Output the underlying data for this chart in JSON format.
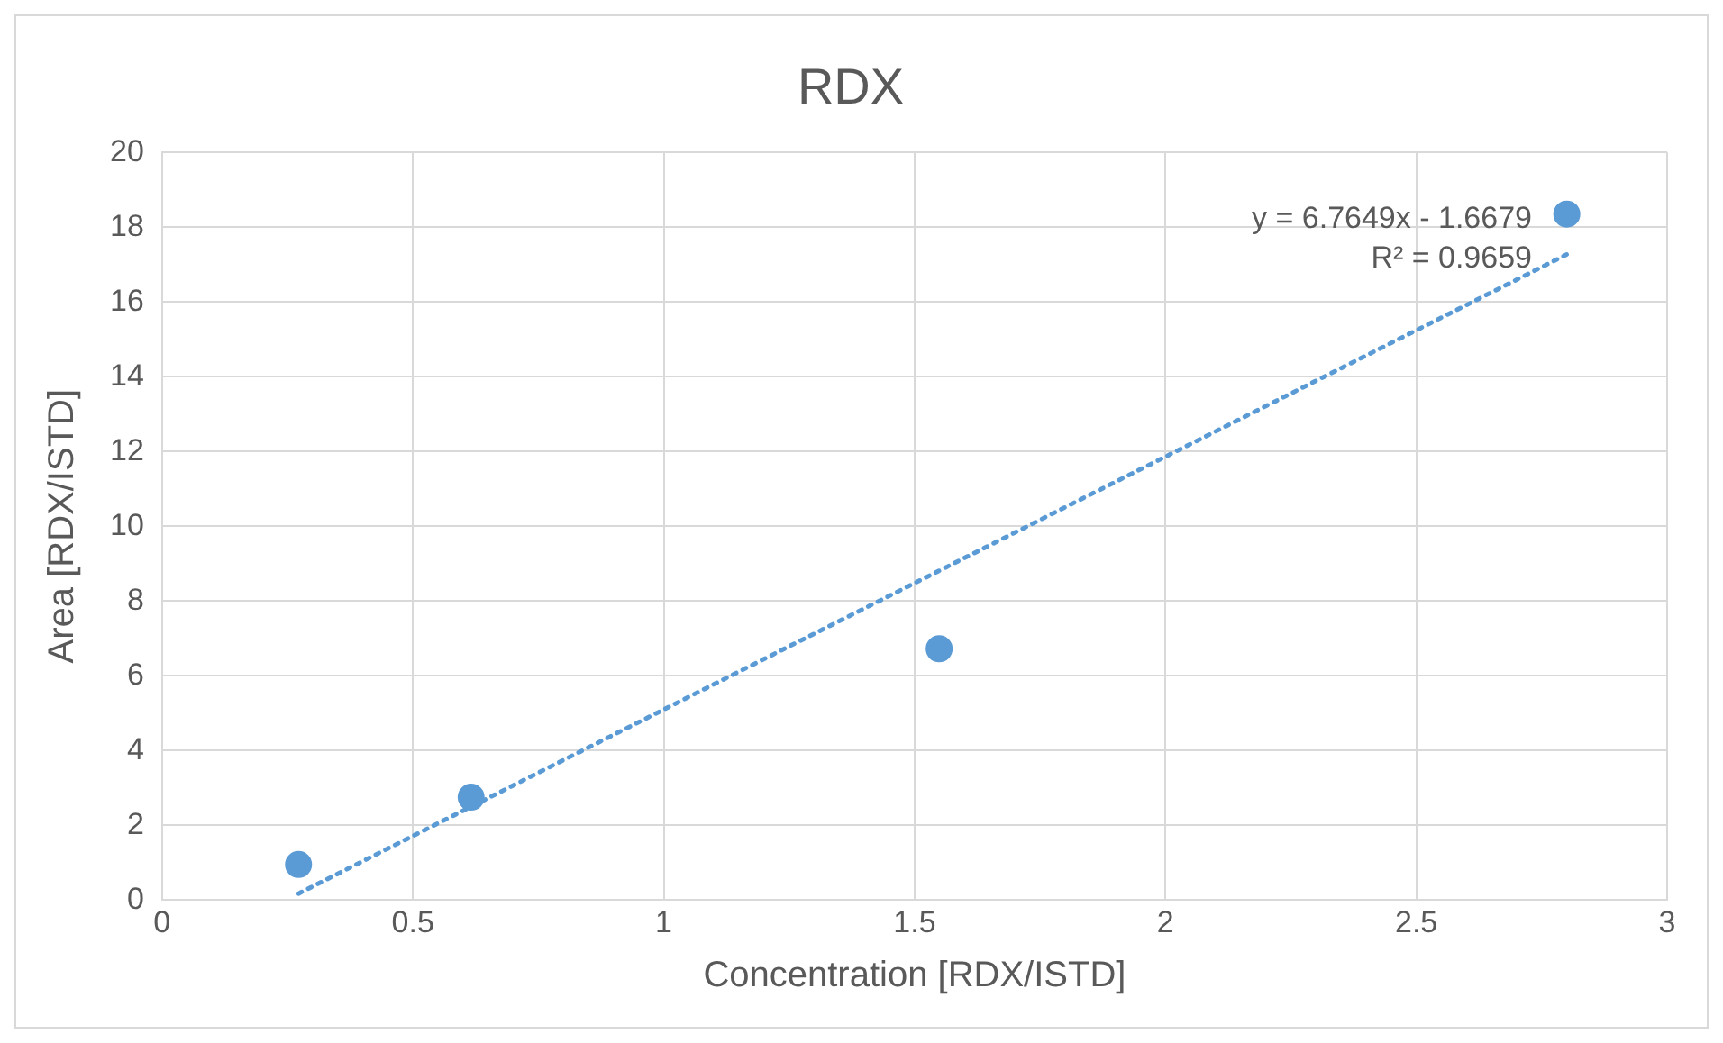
{
  "chart_data": {
    "type": "scatter",
    "title": "RDX",
    "xlabel": "Concentration [RDX/ISTD]",
    "ylabel": "Area [RDX/ISTD]",
    "xlim": [
      0,
      3
    ],
    "xticks": [
      0,
      0.5,
      1,
      1.5,
      2,
      2.5,
      3
    ],
    "ylim": [
      0,
      20
    ],
    "yticks": [
      0,
      2,
      4,
      6,
      8,
      10,
      12,
      14,
      16,
      18,
      20
    ],
    "grid": true,
    "legend": false,
    "marker": "circle",
    "series": [
      {
        "type": "scatter",
        "color": "#5b9bd5",
        "x": [
          0.272,
          0.616,
          1.549,
          2.8
        ],
        "values": [
          0.95,
          2.75,
          6.72,
          18.35
        ]
      },
      {
        "type": "line",
        "color": "#5b9bd5",
        "line_style": "dotted",
        "marker": "none",
        "x": [
          0.272,
          2.8
        ],
        "values": [
          0.17,
          17.27
        ]
      }
    ],
    "annotations": [
      "y = 6.7649x - 1.6679",
      "R² = 0.9659"
    ]
  }
}
